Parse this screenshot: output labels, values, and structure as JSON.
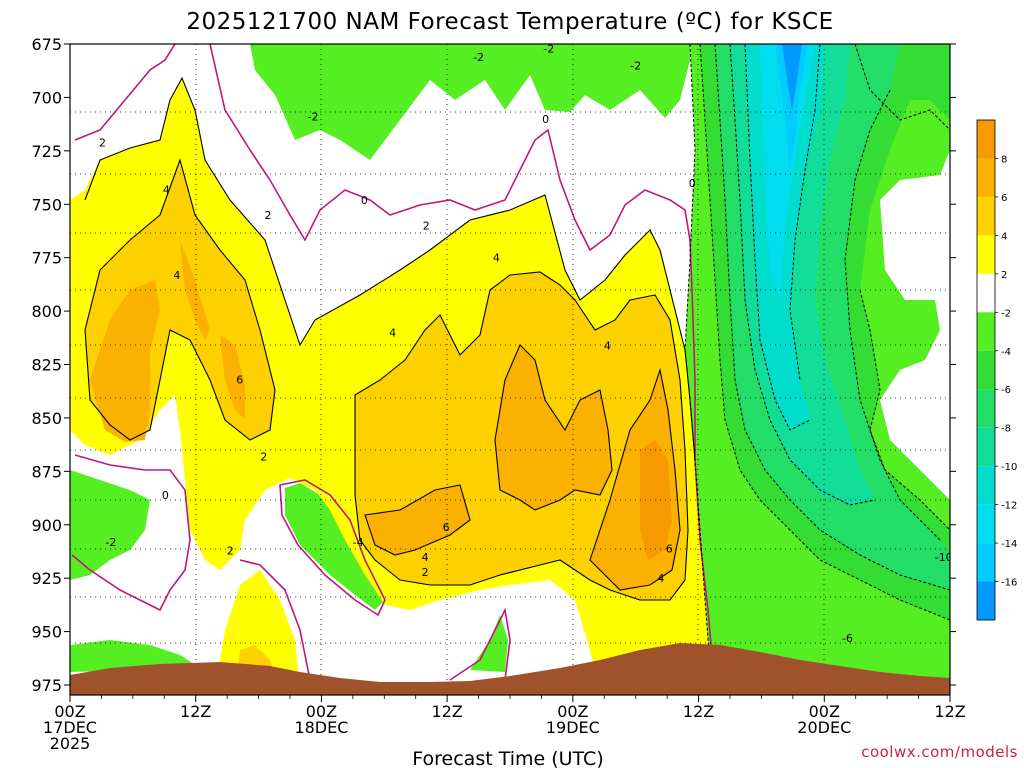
{
  "chart_data": {
    "type": "contour",
    "title": "2025121700 NAM Forecast Temperature (ºC) for KSCE",
    "xlabel": "Forecast Time (UTC)",
    "ylabel": "",
    "credit": "coolwx.com/models",
    "x_ticks": [
      {
        "hour": 0,
        "lines": [
          "00Z",
          "17DEC",
          "2025"
        ]
      },
      {
        "hour": 12,
        "lines": [
          "12Z"
        ]
      },
      {
        "hour": 24,
        "lines": [
          "00Z",
          "18DEC"
        ]
      },
      {
        "hour": 36,
        "lines": [
          "12Z"
        ]
      },
      {
        "hour": 48,
        "lines": [
          "00Z",
          "19DEC"
        ]
      },
      {
        "hour": 60,
        "lines": [
          "12Z"
        ]
      },
      {
        "hour": 72,
        "lines": [
          "00Z",
          "20DEC"
        ]
      },
      {
        "hour": 84,
        "lines": [
          "12Z"
        ]
      }
    ],
    "xlim_hours": [
      0,
      84
    ],
    "y_ticks": [
      "675",
      "700",
      "725",
      "750",
      "775",
      "800",
      "825",
      "850",
      "875",
      "900",
      "925",
      "950",
      "975"
    ],
    "ylim_hPa": [
      675,
      975
    ],
    "y_direction": "pressure decreasing upward",
    "colorbar": {
      "labels": [
        "8",
        "6",
        "4",
        "2",
        "-2",
        "-4",
        "-6",
        "-8",
        "-10",
        "-12",
        "-14",
        "-16"
      ],
      "colors": [
        "#f79a00",
        "#fbb100",
        "#fdd000",
        "#ffff00",
        "#ffffff",
        "#55ee22",
        "#33dd33",
        "#22dd66",
        "#11dd99",
        "#00ddcc",
        "#00ddee",
        "#00ccff",
        "#0099ff"
      ]
    },
    "terrain_color": "#a0522d",
    "contour_labels": [
      {
        "text": "-2",
        "hour": 39.0,
        "p": 681
      },
      {
        "text": "-2",
        "hour": 23.2,
        "p": 709
      },
      {
        "text": "-2",
        "hour": 45.7,
        "p": 677
      },
      {
        "text": "-2",
        "hour": 54.0,
        "p": 685
      },
      {
        "text": "0",
        "hour": 45.4,
        "p": 710
      },
      {
        "text": "0",
        "hour": 59.4,
        "p": 740
      },
      {
        "text": "0",
        "hour": 28.1,
        "p": 748
      },
      {
        "text": "0",
        "hour": 9.1,
        "p": 886
      },
      {
        "text": "2",
        "hour": 3.1,
        "p": 721
      },
      {
        "text": "2",
        "hour": 18.9,
        "p": 755
      },
      {
        "text": "2",
        "hour": 34.0,
        "p": 760
      },
      {
        "text": "2",
        "hour": 18.5,
        "p": 868
      },
      {
        "text": "2",
        "hour": 15.3,
        "p": 912
      },
      {
        "text": "2",
        "hour": 33.9,
        "p": 922
      },
      {
        "text": "4",
        "hour": 9.2,
        "p": 743
      },
      {
        "text": "4",
        "hour": 10.2,
        "p": 783
      },
      {
        "text": "4",
        "hour": 40.7,
        "p": 775
      },
      {
        "text": "4",
        "hour": 30.8,
        "p": 810
      },
      {
        "text": "4",
        "hour": 51.3,
        "p": 816
      },
      {
        "text": "4",
        "hour": 33.9,
        "p": 915
      },
      {
        "text": "4",
        "hour": 56.4,
        "p": 925
      },
      {
        "text": "6",
        "hour": 16.2,
        "p": 832
      },
      {
        "text": "6",
        "hour": 35.9,
        "p": 901
      },
      {
        "text": "6",
        "hour": 57.2,
        "p": 911
      },
      {
        "text": "-4",
        "hour": 27.5,
        "p": 908
      },
      {
        "text": "-6",
        "hour": 74.2,
        "p": 953
      },
      {
        "text": "-10",
        "hour": 83.4,
        "p": 915
      },
      {
        "text": "-2",
        "hour": 3.9,
        "p": 908
      }
    ]
  }
}
